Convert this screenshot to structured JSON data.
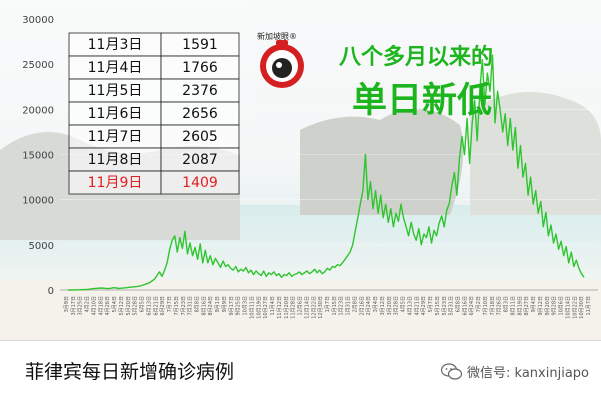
{
  "chart_data": {
    "type": "line",
    "title": "菲律宾每日新增确诊病例",
    "xlabel": "",
    "ylabel": "",
    "ylim": [
      0,
      30000
    ],
    "yticks": [
      0,
      5000,
      10000,
      15000,
      20000,
      25000,
      30000
    ],
    "ytick_labels": [
      "0",
      "5000",
      "10000",
      "15000",
      "20000",
      "25000",
      "30000"
    ],
    "xtick_labels": [
      "3月9日",
      "3月17日",
      "3月25日",
      "4月2日",
      "4月10日",
      "4月18日",
      "4月26日",
      "5月4日",
      "5月12日",
      "5月20日",
      "5月28日",
      "6月5日",
      "6月13日",
      "6月21日",
      "6月29日",
      "7月7日",
      "7月15日",
      "7月23日",
      "7月31日",
      "8月8日",
      "8月16日",
      "8月24日",
      "9月1日",
      "9月9日",
      "9月17日",
      "9月25日",
      "10月3日",
      "10月11日",
      "10月19日",
      "10月27日",
      "11月4日",
      "11月12日",
      "11月20日",
      "11月28日",
      "12月6日",
      "12月14日",
      "12月22日",
      "12月30日",
      "1月7日",
      "1月15日",
      "1月23日",
      "1月31日",
      "2月8日",
      "2月16日",
      "2月24日",
      "3月4日",
      "3月12日",
      "3月20日",
      "3月28日",
      "4月5日",
      "4月13日",
      "4月21日",
      "4月29日",
      "5月7日",
      "5月15日",
      "5月23日",
      "5月31日",
      "6月8日",
      "6月16日",
      "6月24日",
      "7月2日",
      "7月10日",
      "7月18日",
      "7月26日",
      "8月3日",
      "8月11日",
      "8月19日",
      "8月27日",
      "9月4日",
      "9月12日",
      "9月20日",
      "9月28日",
      "10月6日",
      "10月14日",
      "10月22日",
      "10月30日",
      "11月7日"
    ],
    "series": [
      {
        "color": "#2fc52f",
        "values": [
          5,
          5,
          10,
          20,
          20,
          30,
          40,
          60,
          80,
          120,
          150,
          180,
          200,
          220,
          200,
          180,
          150,
          200,
          250,
          220,
          180,
          200,
          230,
          260,
          300,
          320,
          350,
          380,
          420,
          500,
          600,
          700,
          800,
          1000,
          1200,
          1600,
          2000,
          1500,
          2200,
          3000,
          4500,
          5500,
          6000,
          4200,
          5800,
          4600,
          6500,
          4000,
          5200,
          3800,
          4700,
          3400,
          5100,
          3000,
          4400,
          3000,
          3800,
          2800,
          3500,
          3000,
          2500,
          3200,
          2600,
          2800,
          2400,
          2200,
          2600,
          2000,
          2300,
          2100,
          2500,
          1900,
          2200,
          1700,
          2100,
          1800,
          1600,
          2100,
          1500,
          1900,
          1700,
          2000,
          1600,
          1800,
          1400,
          1700,
          1600,
          1900,
          1500,
          1700,
          1800,
          2000,
          1700,
          1900,
          2100,
          1800,
          2000,
          2300,
          1900,
          2200,
          1800,
          2000,
          2400,
          2200,
          2600,
          2500,
          2800,
          2700,
          3000,
          3400,
          3800,
          4200,
          5000,
          6500,
          8000,
          9500,
          11000,
          15000,
          10000,
          12000,
          9000,
          11000,
          8500,
          10500,
          8000,
          9500,
          7500,
          9000,
          7000,
          8500,
          7600,
          9500,
          8000,
          7000,
          6000,
          7500,
          6200,
          5500,
          6800,
          5000,
          6200,
          5800,
          7000,
          5200,
          6600,
          6000,
          7400,
          8200,
          7000,
          8800,
          9600,
          11500,
          13000,
          10500,
          14500,
          17000,
          15000,
          19000,
          14000,
          18500,
          21000,
          16500,
          22000,
          25500,
          20500,
          24000,
          22000,
          26000,
          18500,
          22000,
          20000,
          17500,
          19500,
          16000,
          19000,
          15500,
          18000,
          13500,
          16000,
          12500,
          14000,
          10500,
          12500,
          9500,
          11000,
          8500,
          9800,
          7000,
          8600,
          6000,
          7200,
          5200,
          6200,
          4500,
          5400,
          3800,
          4800,
          3000,
          4200,
          2600,
          3300,
          2400,
          1800,
          1409
        ]
      }
    ],
    "background": "beach photo with rock formation"
  },
  "table": {
    "rows": [
      {
        "date": "11月3日",
        "value": "1591",
        "highlight": false
      },
      {
        "date": "11月4日",
        "value": "1766",
        "highlight": false
      },
      {
        "date": "11月5日",
        "value": "2376",
        "highlight": false
      },
      {
        "date": "11月6日",
        "value": "2656",
        "highlight": false
      },
      {
        "date": "11月7日",
        "value": "2605",
        "highlight": false
      },
      {
        "date": "11月8日",
        "value": "2087",
        "highlight": false
      },
      {
        "date": "11月9日",
        "value": "1409",
        "highlight": true
      }
    ],
    "highlight_color": "#e02020"
  },
  "headline": {
    "line1": "八个多月以来的",
    "line2": "单日新低",
    "color": "#1db51d"
  },
  "logo": {
    "text": "新加坡眼®",
    "icon": "camera-eye-logo"
  },
  "caption": {
    "text": "菲律宾每日新增确诊病例",
    "wechat_label": "微信号: kanxinjiapo",
    "wechat_icon": "wechat-icon"
  }
}
